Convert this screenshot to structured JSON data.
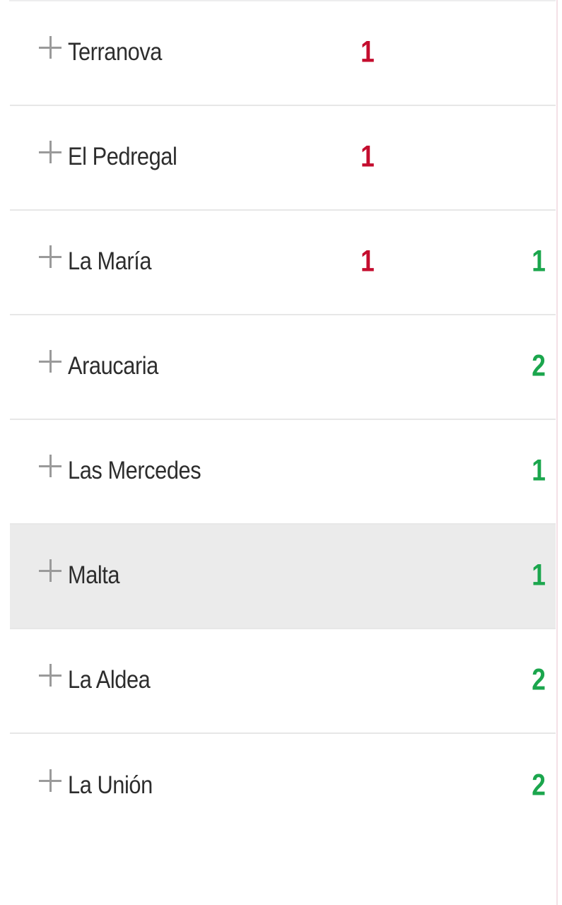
{
  "page": {
    "background": "#ffffff"
  },
  "list": {
    "expand_symbol": "+",
    "colors": {
      "red_value": "#c40d2e",
      "green_value": "#1ba64d",
      "row_highlight": "#ebebeb",
      "divider": "#e7e7e7",
      "name_text": "#2d2d2d",
      "plus_icon": "#9a9a9a"
    },
    "rows": [
      {
        "name": "Terranova",
        "red_value": "1",
        "green_value": "",
        "highlighted": false
      },
      {
        "name": "El Pedregal",
        "red_value": "1",
        "green_value": "",
        "highlighted": false
      },
      {
        "name": "La María",
        "red_value": "1",
        "green_value": "1",
        "highlighted": false
      },
      {
        "name": "Araucaria",
        "red_value": "",
        "green_value": "2",
        "highlighted": false
      },
      {
        "name": "Las Mercedes",
        "red_value": "",
        "green_value": "1",
        "highlighted": false
      },
      {
        "name": "Malta",
        "red_value": "",
        "green_value": "1",
        "highlighted": true
      },
      {
        "name": "La Aldea",
        "red_value": "",
        "green_value": "2",
        "highlighted": false
      },
      {
        "name": "La Unión",
        "red_value": "",
        "green_value": "2",
        "highlighted": false
      }
    ]
  }
}
